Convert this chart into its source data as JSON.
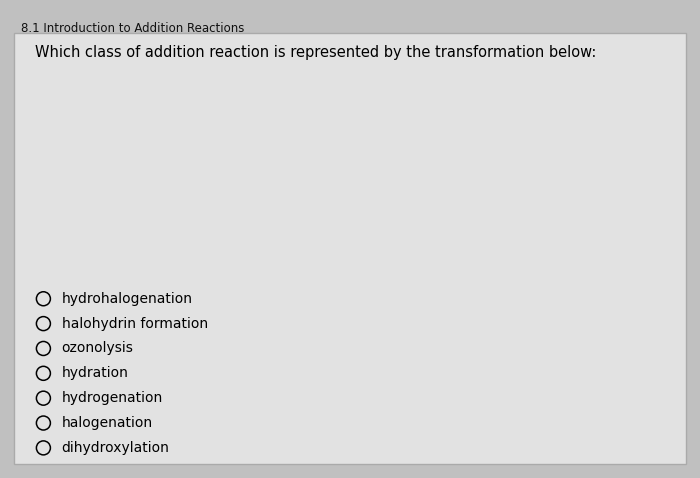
{
  "header": "8.1 Introduction to Addition Reactions",
  "question": "Which class of addition reaction is represented by the transformation below:",
  "options": [
    "hydrohalogenation",
    "halohydrin formation",
    "ozonolysis",
    "hydration",
    "hydrogenation",
    "halogenation",
    "dihydroxylation"
  ],
  "bg_color": "#c0c0c0",
  "card_color": "#e2e2e2",
  "text_color": "#000000",
  "header_color": "#111111",
  "header_fontsize": 8.5,
  "question_fontsize": 10.5,
  "option_fontsize": 10,
  "lw": 2.0
}
